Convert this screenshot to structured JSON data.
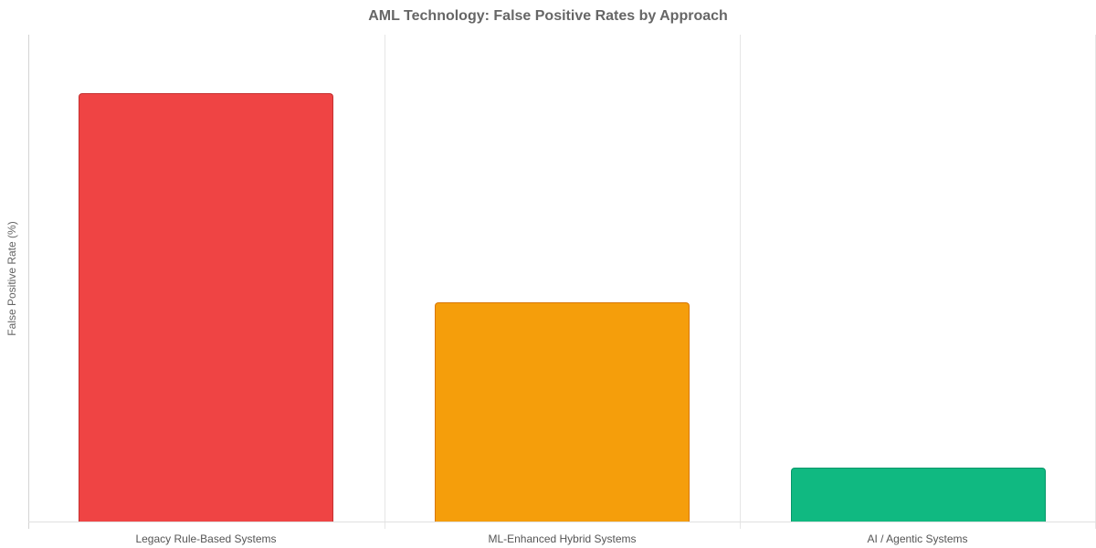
{
  "chart_data": {
    "type": "bar",
    "title": "AML Technology: False Positive Rates by Approach",
    "xlabel": "",
    "ylabel": "False Positive Rate (%)",
    "categories": [
      "Legacy Rule-Based Systems",
      "ML-Enhanced Hybrid Systems",
      "AI / Agentic Systems"
    ],
    "values": [
      88,
      45,
      11
    ],
    "ylim": [
      0,
      100
    ],
    "y_ticks_visible": false,
    "grid": {
      "vertical": true,
      "horizontal": false
    },
    "legend": null,
    "colors": [
      "#ef4444",
      "#f59e0b",
      "#10b981"
    ],
    "border_colors": [
      "#c53030",
      "#d97706",
      "#059669"
    ]
  }
}
